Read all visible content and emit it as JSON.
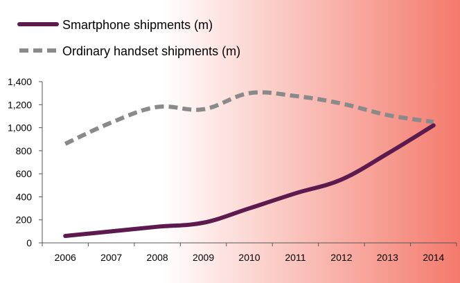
{
  "chart_data": {
    "type": "line",
    "categories": [
      "2006",
      "2007",
      "2008",
      "2009",
      "2010",
      "2011",
      "2012",
      "2013",
      "2014"
    ],
    "series": [
      {
        "name": "Smartphone shipments (m)",
        "values": [
          60,
          100,
          140,
          175,
          300,
          430,
          550,
          775,
          1020
        ],
        "color": "#5c1a4f",
        "style": "solid"
      },
      {
        "name": "Ordinary handset shipments (m)",
        "values": [
          860,
          1045,
          1180,
          1160,
          1300,
          1275,
          1210,
          1110,
          1050
        ],
        "color": "#8a8a8a",
        "style": "dashed"
      }
    ],
    "ylim": [
      0,
      1400
    ],
    "yticks": [
      0,
      200,
      400,
      600,
      800,
      1000,
      1200,
      1400
    ],
    "ytick_labels": [
      "0",
      "200",
      "400",
      "600",
      "800",
      "1,000",
      "1,200",
      "1,400"
    ],
    "grid": false,
    "legend": "top-left",
    "background": {
      "start": "#ffffff",
      "end": "#f47a6c"
    }
  }
}
